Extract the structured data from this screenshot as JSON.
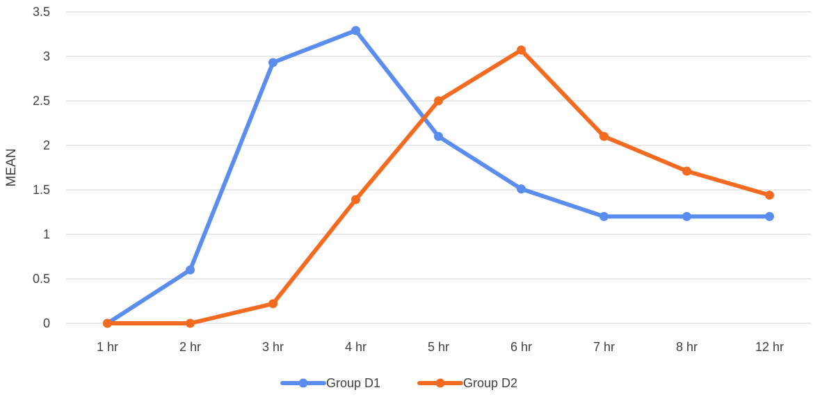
{
  "chart_data": {
    "type": "line",
    "title": "",
    "xlabel": "",
    "ylabel": "MEAN",
    "categories": [
      "1 hr",
      "2 hr",
      "3 hr",
      "4 hr",
      "5 hr",
      "6 hr",
      "7 hr",
      "8 hr",
      "12 hr"
    ],
    "ylim": [
      0,
      3.5
    ],
    "yticks": [
      "0",
      "0.5",
      "1",
      "1.5",
      "2",
      "2.5",
      "3",
      "3.5"
    ],
    "grid": true,
    "legend_position": "bottom",
    "series": [
      {
        "name": "Group D1",
        "color": "#5B8DEF",
        "values": [
          0,
          0.6,
          2.93,
          3.29,
          2.1,
          1.51,
          1.2,
          1.2,
          1.2
        ]
      },
      {
        "name": "Group D2",
        "color": "#F26B21",
        "values": [
          0,
          0,
          0.22,
          1.39,
          2.5,
          3.07,
          2.1,
          1.71,
          1.44
        ]
      }
    ]
  }
}
